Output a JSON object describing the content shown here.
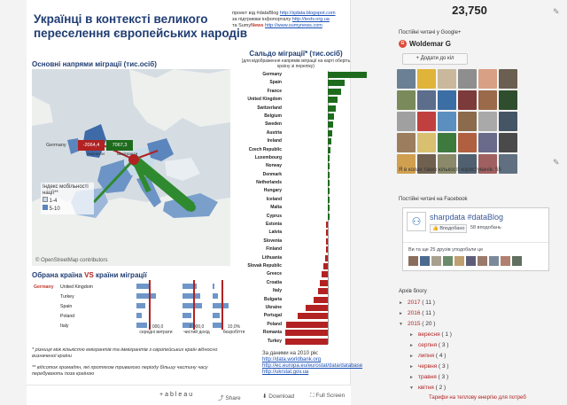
{
  "viz": {
    "title": "Українці в контексті великого переселення європейських народів",
    "credits": {
      "line1_pre": "проект від #dataBlog",
      "line1_link": "http://sjdata.blogspot.com",
      "line2_pre": "за підтримки інфопорталу",
      "line2_link": "http://textv.org.ua",
      "line3_pre": "та",
      "line3_brand_a": "Sumy",
      "line3_brand_b": "News",
      "line3_link": "http://www.sumynews.com"
    },
    "map_section_title": "Основні напрями міграції (тис.осіб)",
    "map_tip": {
      "country": "Germany",
      "emigrants": "-2064,4",
      "immigrants": "7067,3",
      "emigrants_label": "еміранти",
      "immigrants_label": "іммігранти"
    },
    "legend": {
      "title": "Індекс мобільності нації**",
      "item1": "1-4",
      "item2": "5-10"
    },
    "osm_credit": "© OpenStreetMap contributors",
    "saldo_title": "Сальдо міграції* (тис.осіб)",
    "saldo_sub": "(для відображення напрямів міграції на карті оберіть країну зі переліку)",
    "saldo_countries": [
      "Germany",
      "Spain",
      "France",
      "United Kingdom",
      "Switzerland",
      "Belgium",
      "Sweden",
      "Austria",
      "Ireland",
      "Czech Republic",
      "Luxembourg",
      "Norway",
      "Denmark",
      "Netherlands",
      "Hungary",
      "Iceland",
      "Malta",
      "Cyprus",
      "Estonia",
      "Latvia",
      "Slovenia",
      "Finland",
      "Lithuania",
      "Slovak Republic",
      "Greece",
      "Croatia",
      "Italy",
      "Bulgaria",
      "Ukraine",
      "Portugal",
      "Poland",
      "Romania",
      "Turkey"
    ],
    "selection_title_a": "Обрана країна",
    "selection_vs": "VS",
    "selection_title_b": "країни міграції",
    "selection": {
      "country": "Germany",
      "partners": [
        "United Kingdom",
        "Turkey",
        "Spain",
        "Poland",
        "Italy"
      ]
    },
    "axis_labels": [
      {
        "value": "2 000,0",
        "label": "середні витрати"
      },
      {
        "value": "2 000,0",
        "label": "чистий дохід"
      },
      {
        "value": "10,0%",
        "label": "безробіття"
      }
    ],
    "footnote1": "* різниця між кількістю емігрантів та іммігрантів з європейських країн відносно визначеної країни",
    "footnote2": "** відсоток громадян, які протягом тривалого періоду більшу частину часу перебувають поза країною",
    "sources_title": "За даними на 2010 рік:",
    "sources": [
      "http://data.worldbank.org",
      "http://ec.europa.eu/eurostat/data/database",
      "http://ukrstat.gov.ua"
    ],
    "toolbar": {
      "logo": "+ableau",
      "share": "Share",
      "download": "Download",
      "fullscreen": "Full Screen"
    }
  },
  "chart_data": {
    "type": "bar",
    "title": "Сальдо міграції* (тис.осіб)",
    "categories": [
      "Germany",
      "Spain",
      "France",
      "United Kingdom",
      "Switzerland",
      "Belgium",
      "Sweden",
      "Austria",
      "Ireland",
      "Czech Republic",
      "Luxembourg",
      "Norway",
      "Denmark",
      "Netherlands",
      "Hungary",
      "Iceland",
      "Malta",
      "Cyprus",
      "Estonia",
      "Latvia",
      "Slovenia",
      "Finland",
      "Lithuania",
      "Slovak Republic",
      "Greece",
      "Croatia",
      "Italy",
      "Bulgaria",
      "Ukraine",
      "Portugal",
      "Poland",
      "Romania",
      "Turkey"
    ],
    "values": [
      5000,
      2200,
      1700,
      1300,
      1050,
      850,
      700,
      600,
      420,
      350,
      280,
      240,
      180,
      150,
      110,
      80,
      50,
      40,
      -20,
      -30,
      -40,
      -60,
      -100,
      -160,
      -220,
      -280,
      -360,
      -520,
      -800,
      -1100,
      -1500,
      -2100,
      -3200
    ],
    "colors": {
      "positive": "#1e6b1e",
      "negative": "#b22222"
    }
  },
  "sidebar": {
    "count": "23,750",
    "gplus_header": "Постійні читачі у Google+",
    "gplus_name": "Woldemar G",
    "add_circles": "Додати до кіл",
    "circle_text": "Я в колах таких кількості користувачів: 55",
    "fb_header": "Постійні читачі на Facebook",
    "fb_page": "sharpdata #dataBlog",
    "fb_like": "Вподобано",
    "fb_count": "58 вподобань",
    "fb_friends": "Ви та ще 25 друзів уподобали це",
    "archive_header": "Архів блогу",
    "archive": [
      {
        "toggle": "►",
        "year": "2017",
        "count": "( 11 )",
        "indent": 0
      },
      {
        "toggle": "►",
        "year": "2016",
        "count": "( 11 )",
        "indent": 0
      },
      {
        "toggle": "▼",
        "year": "2015",
        "count": "( 20 )",
        "indent": 0
      },
      {
        "toggle": "►",
        "year": "вересня",
        "count": "( 1 )",
        "indent": 1
      },
      {
        "toggle": "►",
        "year": "серпня",
        "count": "( 3 )",
        "indent": 1
      },
      {
        "toggle": "►",
        "year": "липня",
        "count": "( 4 )",
        "indent": 1
      },
      {
        "toggle": "►",
        "year": "червня",
        "count": "( 3 )",
        "indent": 1
      },
      {
        "toggle": "►",
        "year": "травня",
        "count": "( 3 )",
        "indent": 1
      },
      {
        "toggle": "▼",
        "year": "квітня",
        "count": "( 2 )",
        "indent": 1
      }
    ],
    "archive_post": "Тарифи на теплову енергію для потреб"
  }
}
